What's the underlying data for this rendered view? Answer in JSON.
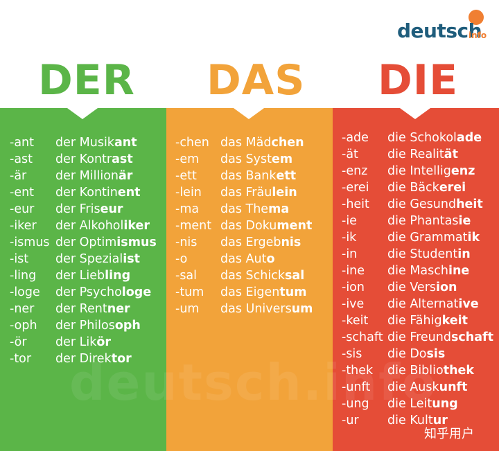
{
  "logo": {
    "text": "deutsch",
    "sub": "info"
  },
  "headers": {
    "der": "DER",
    "das": "DAS",
    "die": "DIE"
  },
  "colors": {
    "der": "#5bb548",
    "das": "#f2a33a",
    "die": "#e54d37"
  },
  "der": [
    {
      "suffix": "-ant",
      "article": "der ",
      "stem": "Musik",
      "end": "ant"
    },
    {
      "suffix": "-ast",
      "article": "der ",
      "stem": "Kontr",
      "end": "ast"
    },
    {
      "suffix": "-är",
      "article": "der ",
      "stem": "Million",
      "end": "är"
    },
    {
      "suffix": "-ent",
      "article": "der ",
      "stem": "Kontin",
      "end": "ent"
    },
    {
      "suffix": "-eur",
      "article": "der ",
      "stem": "Fris",
      "end": "eur"
    },
    {
      "suffix": "-iker",
      "article": "der ",
      "stem": "Alkohol",
      "end": "iker"
    },
    {
      "suffix": "-ismus",
      "article": "der ",
      "stem": "Optim",
      "end": "ismus"
    },
    {
      "suffix": "-ist",
      "article": "der ",
      "stem": "Spezial",
      "end": "ist"
    },
    {
      "suffix": "-ling",
      "article": "der ",
      "stem": "Lieb",
      "end": "ling"
    },
    {
      "suffix": "-loge",
      "article": "der ",
      "stem": "Psycho",
      "end": "loge"
    },
    {
      "suffix": "-ner",
      "article": "der ",
      "stem": "Rent",
      "end": "ner"
    },
    {
      "suffix": "-oph",
      "article": "der ",
      "stem": "Philos",
      "end": "oph"
    },
    {
      "suffix": "-ör",
      "article": "der ",
      "stem": "Lik",
      "end": "ör"
    },
    {
      "suffix": "-tor",
      "article": "der ",
      "stem": "Direk",
      "end": "tor"
    }
  ],
  "das": [
    {
      "suffix": "-chen",
      "article": "das ",
      "stem": "Mäd",
      "end": "chen"
    },
    {
      "suffix": "-em",
      "article": "das ",
      "stem": "Syst",
      "end": "em"
    },
    {
      "suffix": "-ett",
      "article": "das ",
      "stem": "Bank",
      "end": "ett"
    },
    {
      "suffix": "-lein",
      "article": "das ",
      "stem": "Fräu",
      "end": "lein"
    },
    {
      "suffix": "-ma",
      "article": "das ",
      "stem": "The",
      "end": "ma"
    },
    {
      "suffix": "-ment",
      "article": "das ",
      "stem": "Doku",
      "end": "ment"
    },
    {
      "suffix": "-nis",
      "article": "das ",
      "stem": "Ergeb",
      "end": "nis"
    },
    {
      "suffix": "-o",
      "article": "das ",
      "stem": "Aut",
      "end": "o"
    },
    {
      "suffix": "-sal",
      "article": "das ",
      "stem": "Schick",
      "end": "sal"
    },
    {
      "suffix": "-tum",
      "article": "das ",
      "stem": "Eigen",
      "end": "tum"
    },
    {
      "suffix": "-um",
      "article": "das ",
      "stem": "Univers",
      "end": "um"
    }
  ],
  "die": [
    {
      "suffix": "-ade",
      "article": "die ",
      "stem": "Schokol",
      "end": "ade"
    },
    {
      "suffix": "-ät",
      "article": "die ",
      "stem": "Realit",
      "end": "ät"
    },
    {
      "suffix": "-enz",
      "article": "die ",
      "stem": "Intellig",
      "end": "enz"
    },
    {
      "suffix": "-erei",
      "article": "die ",
      "stem": "Bäck",
      "end": "erei"
    },
    {
      "suffix": "-heit",
      "article": "die ",
      "stem": "Gesund",
      "end": "heit"
    },
    {
      "suffix": "-ie",
      "article": "die ",
      "stem": "Phantas",
      "end": "ie"
    },
    {
      "suffix": "-ik",
      "article": "die ",
      "stem": "Grammat",
      "end": "ik"
    },
    {
      "suffix": "-in",
      "article": "die ",
      "stem": "Student",
      "end": "in"
    },
    {
      "suffix": "-ine",
      "article": "die ",
      "stem": "Masch",
      "end": "ine"
    },
    {
      "suffix": "-ion",
      "article": "die ",
      "stem": "Vers",
      "end": "ion"
    },
    {
      "suffix": "-ive",
      "article": "die ",
      "stem": "Alternat",
      "end": "ive"
    },
    {
      "suffix": "-keit",
      "article": "die ",
      "stem": "Fähig",
      "end": "keit"
    },
    {
      "suffix": "-schaft",
      "article": "die ",
      "stem": "Freund",
      "end": "schaft"
    },
    {
      "suffix": "-sis",
      "article": "die ",
      "stem": "Do",
      "end": "sis"
    },
    {
      "suffix": "-thek",
      "article": "die ",
      "stem": "Biblio",
      "end": "thek"
    },
    {
      "suffix": "-unft",
      "article": "die ",
      "stem": "Ausk",
      "end": "unft"
    },
    {
      "suffix": "-ung",
      "article": "die ",
      "stem": "Leit",
      "end": "ung"
    },
    {
      "suffix": "-ur",
      "article": "die ",
      "stem": "Kult",
      "end": "ur"
    }
  ],
  "watermark": "deutsch.info",
  "credit": "知乎用户"
}
